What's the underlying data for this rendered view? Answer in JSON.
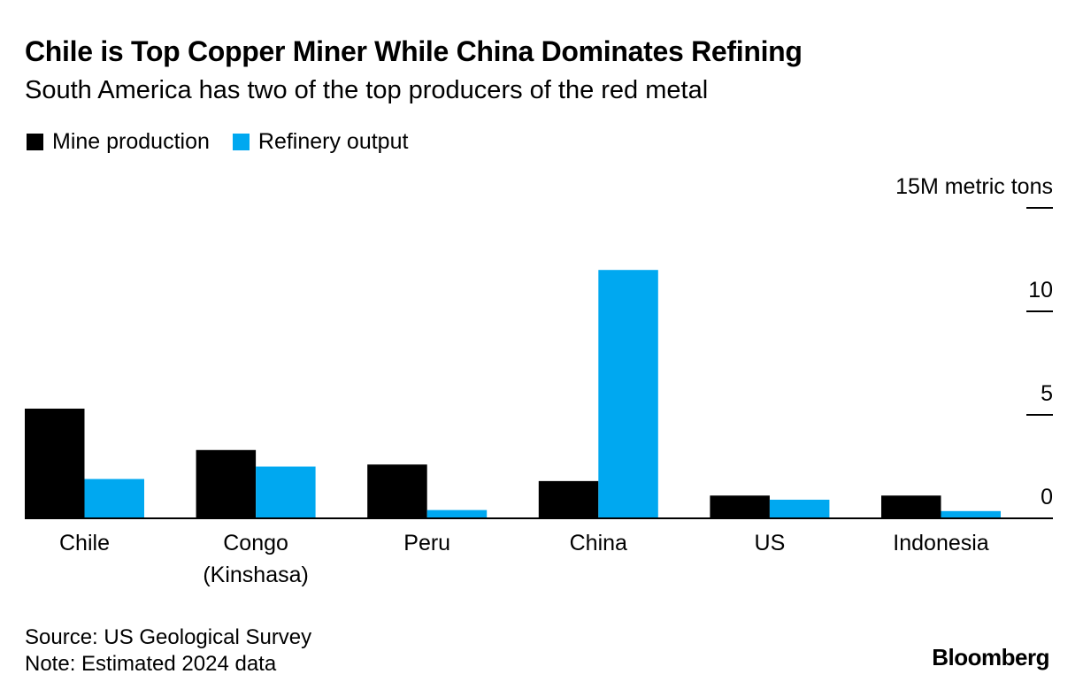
{
  "title": "Chile is Top Copper Miner While China Dominates Refining",
  "subtitle": "South America has two of the top producers of the red metal",
  "legend": {
    "mine_label": "Mine production",
    "refinery_label": "Refinery output"
  },
  "colors": {
    "mine": "#000000",
    "refinery": "#00a8f0"
  },
  "footer": {
    "source": "Source: US Geological Survey",
    "note": "Note: Estimated 2024 data",
    "logo": "Bloomberg"
  },
  "chart_data": {
    "type": "bar",
    "title": "Chile is Top Copper Miner While China Dominates Refining",
    "subtitle": "South America has two of the top producers of the red metal",
    "ylabel": "15M metric tons",
    "ylim": [
      0,
      15
    ],
    "yticks": [
      0,
      5,
      10,
      15
    ],
    "ytick_labels": [
      "0",
      "5",
      "10",
      "15M metric tons"
    ],
    "grid": false,
    "legend": "top-left",
    "categories": [
      [
        "Chile"
      ],
      [
        "Congo",
        "(Kinshasa)"
      ],
      [
        "Peru"
      ],
      [
        "China"
      ],
      [
        "US"
      ],
      [
        "Indonesia"
      ]
    ],
    "series": [
      {
        "name": "Mine production",
        "values": [
          5.3,
          3.3,
          2.6,
          1.8,
          1.1,
          1.1
        ]
      },
      {
        "name": "Refinery output",
        "values": [
          1.9,
          2.5,
          0.4,
          12.0,
          0.9,
          0.35
        ]
      }
    ]
  }
}
